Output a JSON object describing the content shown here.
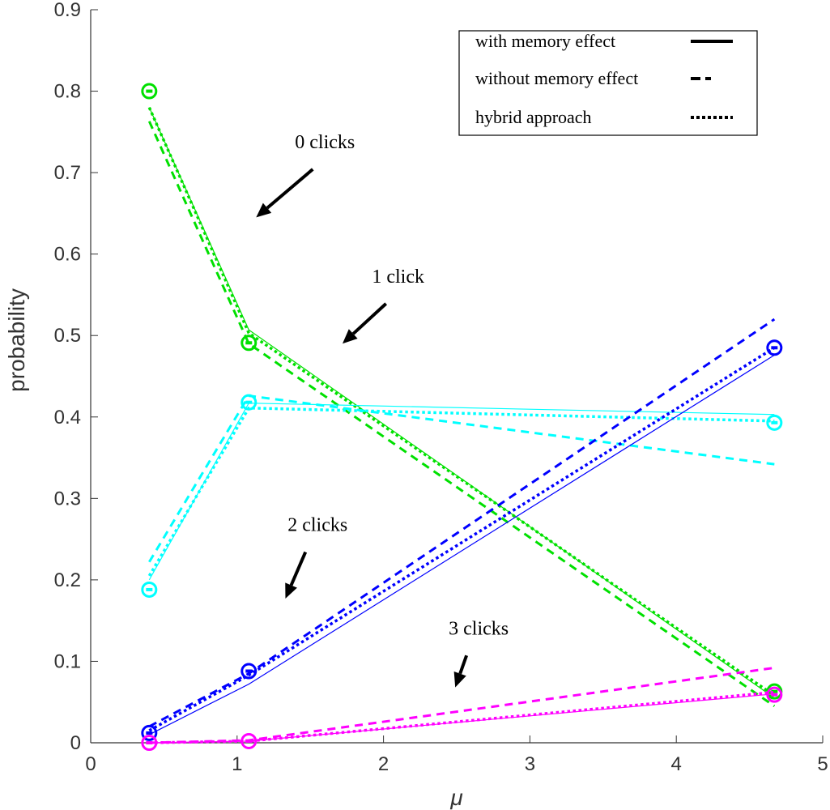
{
  "chart_data": {
    "type": "line",
    "title": "",
    "xlabel": "μ",
    "ylabel": "probability",
    "xlim": [
      0,
      5
    ],
    "ylim": [
      0,
      0.9
    ],
    "xticks": [
      "0",
      "1",
      "2",
      "3",
      "4",
      "5"
    ],
    "yticks": [
      "0",
      "0.1",
      "0.2",
      "0.3",
      "0.4",
      "0.5",
      "0.6",
      "0.7",
      "0.8",
      "0.9"
    ],
    "grid": false,
    "x": [
      0.4,
      1.08,
      4.67
    ],
    "legend": {
      "placement": "top-right",
      "entries": [
        {
          "label": "with memory effect",
          "style": "solid"
        },
        {
          "label": "without memory effect",
          "style": "dashed"
        },
        {
          "label": "hybrid approach",
          "style": "dotted"
        }
      ]
    },
    "series": [
      {
        "name": "0 clicks",
        "color": "#00e000",
        "markers": [
          0.8,
          0.491,
          0.063
        ],
        "with_memory": [
          0.78,
          0.507,
          0.055
        ],
        "without_memory": [
          0.763,
          0.49,
          0.045
        ],
        "hybrid": [
          0.78,
          0.503,
          0.058
        ]
      },
      {
        "name": "1 click",
        "color": "#00ffff",
        "markers": [
          0.188,
          0.418,
          0.393
        ],
        "with_memory": [
          0.2,
          0.417,
          0.403
        ],
        "without_memory": [
          0.222,
          0.426,
          0.342
        ],
        "hybrid": [
          0.205,
          0.411,
          0.395
        ]
      },
      {
        "name": "2 clicks",
        "color": "#0000ff",
        "markers": [
          0.012,
          0.088,
          0.485
        ],
        "with_memory": [
          0.01,
          0.072,
          0.476
        ],
        "without_memory": [
          0.02,
          0.085,
          0.52
        ],
        "hybrid": [
          0.015,
          0.083,
          0.485
        ]
      },
      {
        "name": "3 clicks",
        "color": "#ff00ff",
        "markers": [
          0.0,
          0.002,
          0.059
        ],
        "with_memory": [
          0.0,
          0.002,
          0.06
        ],
        "without_memory": [
          0.0,
          0.003,
          0.092
        ],
        "hybrid": [
          0.0,
          0.002,
          0.062
        ]
      }
    ],
    "annotations": [
      {
        "text": "0 clicks",
        "at": [
          1.6,
          0.73
        ],
        "arrow_to": [
          1.13,
          0.645
        ]
      },
      {
        "text": "1 click",
        "at": [
          2.1,
          0.565
        ],
        "arrow_to": [
          1.72,
          0.49
        ]
      },
      {
        "text": "2 clicks",
        "at": [
          1.55,
          0.26
        ],
        "arrow_to": [
          1.33,
          0.177
        ]
      },
      {
        "text": "3 clicks",
        "at": [
          2.65,
          0.133
        ],
        "arrow_to": [
          2.49,
          0.068
        ]
      }
    ]
  }
}
